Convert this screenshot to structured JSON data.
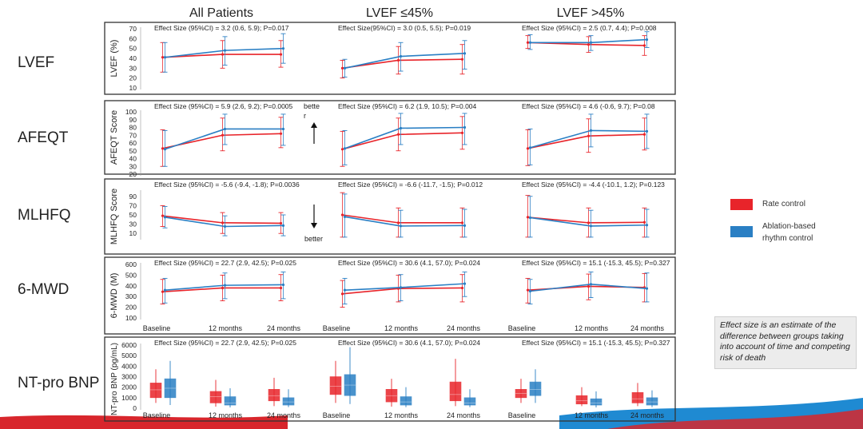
{
  "column_titles": [
    "All Patients",
    "LVEF ≤45%",
    "LVEF >45%"
  ],
  "row_labels": [
    "LVEF",
    "AFEQT",
    "MLHFQ",
    "6-MWD",
    "NT-pro BNP"
  ],
  "legend": [
    {
      "label": "Rate control",
      "color": "#e8242a"
    },
    {
      "label": "Ablation-based rhythm control",
      "label_line1": "Ablation-based",
      "label_line2": "rhythm control",
      "color": "#2a7fc4"
    }
  ],
  "note": "Effect size is an estimate of the difference between groups taking into account of time and competing risk of death",
  "annotations": {
    "better_up_1": "bette",
    "better_up_2": "r",
    "better_down": "better"
  },
  "colors": {
    "rate": "#e8242a",
    "ablation": "#2a7fc4",
    "banner_red": "#d8262c",
    "banner_blue": "#1f8ad2"
  },
  "chart_data": [
    {
      "type": "line",
      "ylabel": "LVEF (%)",
      "ylim": [
        10,
        70
      ],
      "yticks": [
        10,
        20,
        30,
        40,
        50,
        60,
        70
      ],
      "x": [
        "Baseline",
        "12 months",
        "24 months"
      ],
      "show_xlabels": false,
      "panels": [
        {
          "effect": "Effect Size (95%CI) = 3.2 (0.6, 5.9); P=0.017",
          "series": [
            {
              "name": "Rate control",
              "values": [
                41,
                44,
                44
              ],
              "err": [
                [
                  26,
                  56
                ],
                [
                  30,
                  58
                ],
                [
                  31,
                  58
                ]
              ]
            },
            {
              "name": "Ablation-based rhythm control",
              "values": [
                41,
                48,
                50
              ],
              "err": [
                [
                  26,
                  56
                ],
                [
                  33,
                  62
                ],
                [
                  35,
                  65
                ]
              ]
            }
          ]
        },
        {
          "effect": "Effect Size(95%CI) = 3.0 (0.5, 5.5); P=0.019",
          "series": [
            {
              "name": "Rate control",
              "values": [
                30,
                38,
                39
              ],
              "err": [
                [
                  20,
                  38
                ],
                [
                  24,
                  52
                ],
                [
                  24,
                  54
                ]
              ]
            },
            {
              "name": "Ablation-based rhythm control",
              "values": [
                30,
                42,
                45
              ],
              "err": [
                [
                  21,
                  39
                ],
                [
                  27,
                  56
                ],
                [
                  29,
                  58
                ]
              ]
            }
          ]
        },
        {
          "effect": "Effect Size (95%CI) = 2.5 (0.7, 4.4); P=0.008",
          "series": [
            {
              "name": "Rate control",
              "values": [
                56,
                54,
                53
              ],
              "err": [
                [
                  50,
                  63
                ],
                [
                  46,
                  62
                ],
                [
                  43,
                  63
                ]
              ]
            },
            {
              "name": "Ablation-based rhythm control",
              "values": [
                56,
                56,
                59
              ],
              "err": [
                [
                  49,
                  64
                ],
                [
                  48,
                  63
                ],
                [
                  51,
                  67
                ]
              ]
            }
          ]
        }
      ]
    },
    {
      "type": "line",
      "ylabel": "AFEQT Score",
      "ylim": [
        20,
        100
      ],
      "yticks": [
        20,
        30,
        40,
        50,
        60,
        70,
        80,
        90,
        100
      ],
      "x": [
        "Baseline",
        "12 months",
        "24 months"
      ],
      "show_xlabels": false,
      "panels": [
        {
          "effect": "Effect Size (95%CI) = 5.9 (2.6, 9.2); P=0.0005",
          "series": [
            {
              "name": "Rate control",
              "values": [
                53,
                70,
                72
              ],
              "err": [
                [
                  30,
                  77
                ],
                [
                  50,
                  92
                ],
                [
                  54,
                  93
                ]
              ]
            },
            {
              "name": "Ablation-based rhythm control",
              "values": [
                52,
                78,
                78
              ],
              "err": [
                [
                  30,
                  76
                ],
                [
                  58,
                  97
                ],
                [
                  57,
                  97
                ]
              ]
            }
          ]
        },
        {
          "effect": "Effect Size (95%CI) = 6.2 (1.9, 10.5); P=0.004",
          "series": [
            {
              "name": "Rate control",
              "values": [
                52,
                71,
                73
              ],
              "err": [
                [
                  30,
                  75
                ],
                [
                  50,
                  92
                ],
                [
                  52,
                  94
                ]
              ]
            },
            {
              "name": "Ablation-based rhythm control",
              "values": [
                53,
                79,
                80
              ],
              "err": [
                [
                  32,
                  76
                ],
                [
                  58,
                  98
                ],
                [
                  58,
                  98
                ]
              ]
            }
          ]
        },
        {
          "effect": "Effect Size (95%CI) = 4.6 (-0.6, 9.7); P=0.08",
          "series": [
            {
              "name": "Rate control",
              "values": [
                53,
                69,
                71
              ],
              "err": [
                [
                  31,
                  77
                ],
                [
                  48,
                  91
                ],
                [
                  51,
                  92
                ]
              ]
            },
            {
              "name": "Ablation-based rhythm control",
              "values": [
                54,
                76,
                75
              ],
              "err": [
                [
                  32,
                  78
                ],
                [
                  55,
                  97
                ],
                [
                  53,
                  97
                ]
              ]
            }
          ]
        }
      ]
    },
    {
      "type": "line",
      "ylabel": "MLHFQ Score",
      "ylim": [
        0,
        100
      ],
      "yticks": [
        10,
        30,
        50,
        70,
        90
      ],
      "x": [
        "Baseline",
        "12 months",
        "24 months"
      ],
      "show_xlabels": false,
      "panels": [
        {
          "effect": "Effect Size (95%CI) = -5.6 (-9.4, -1.8); P=0.0036",
          "series": [
            {
              "name": "Rate control",
              "values": [
                48,
                33,
                32
              ],
              "err": [
                [
                  25,
                  70
                ],
                [
                  10,
                  55
                ],
                [
                  10,
                  55
                ]
              ]
            },
            {
              "name": "Ablation-based rhythm control",
              "values": [
                45,
                25,
                27
              ],
              "err": [
                [
                  22,
                  68
                ],
                [
                  5,
                  48
                ],
                [
                  5,
                  50
                ]
              ]
            }
          ]
        },
        {
          "effect": "Effect Size (95%CI) = -6.6 (-11.7, -1.5); P=0.012",
          "series": [
            {
              "name": "Rate control",
              "values": [
                50,
                33,
                33
              ],
              "err": [
                [
                  2,
                  98
                ],
                [
                  2,
                  65
                ],
                [
                  2,
                  65
                ]
              ]
            },
            {
              "name": "Ablation-based rhythm control",
              "values": [
                46,
                26,
                27
              ],
              "err": [
                [
                  2,
                  95
                ],
                [
                  2,
                  60
                ],
                [
                  2,
                  62
                ]
              ]
            }
          ]
        },
        {
          "effect": "Effect Size (95%CI) = -4.4 (-10.1, 1.2); P=0.123",
          "series": [
            {
              "name": "Rate control",
              "values": [
                45,
                33,
                34
              ],
              "err": [
                [
                  2,
                  92
                ],
                [
                  2,
                  65
                ],
                [
                  2,
                  65
                ]
              ]
            },
            {
              "name": "Ablation-based rhythm control",
              "values": [
                44,
                26,
                28
              ],
              "err": [
                [
                  2,
                  90
                ],
                [
                  2,
                  60
                ],
                [
                  2,
                  62
                ]
              ]
            }
          ]
        }
      ]
    },
    {
      "type": "line",
      "ylabel": "6-MWD (M)",
      "ylim": [
        100,
        600
      ],
      "yticks": [
        100,
        200,
        300,
        400,
        500,
        600
      ],
      "x": [
        "Baseline",
        "12 months",
        "24 months"
      ],
      "show_xlabels": true,
      "panels": [
        {
          "effect": "Effect Size (95%CI) = 22.7 (2.9, 42.5); P=0.025",
          "series": [
            {
              "name": "Rate control",
              "values": [
                345,
                380,
                380
              ],
              "err": [
                [
                  230,
                  460
                ],
                [
                  260,
                  500
                ],
                [
                  260,
                  505
                ]
              ]
            },
            {
              "name": "Ablation-based rhythm control",
              "values": [
                360,
                405,
                410
              ],
              "err": [
                [
                  240,
                  470
                ],
                [
                  280,
                  520
                ],
                [
                  280,
                  530
                ]
              ]
            }
          ]
        },
        {
          "effect": "Effect Size (95%CI) = 30.6 (4.1, 57.0); P=0.024",
          "series": [
            {
              "name": "Rate control",
              "values": [
                325,
                375,
                380
              ],
              "err": [
                [
                  200,
                  450
                ],
                [
                  250,
                  500
                ],
                [
                  250,
                  505
                ]
              ]
            },
            {
              "name": "Ablation-based rhythm control",
              "values": [
                360,
                385,
                420
              ],
              "err": [
                [
                  230,
                  470
                ],
                [
                  260,
                  505
                ],
                [
                  300,
                  530
                ]
              ]
            }
          ]
        },
        {
          "effect": "Effect Size (95%CI) = 15.1 (-15.3, 45.5); P=0.327",
          "series": [
            {
              "name": "Rate control",
              "values": [
                360,
                395,
                385
              ],
              "err": [
                [
                  240,
                  470
                ],
                [
                  270,
                  510
                ],
                [
                  250,
                  515
                ]
              ]
            },
            {
              "name": "Ablation-based rhythm control",
              "values": [
                350,
                415,
                375
              ],
              "err": [
                [
                  230,
                  460
                ],
                [
                  290,
                  530
                ],
                [
                  250,
                  520
                ]
              ]
            }
          ]
        }
      ]
    },
    {
      "type": "box",
      "ylabel": "NT-pro BNP (pg/mL)",
      "ylim": [
        0,
        6000
      ],
      "yticks": [
        0,
        1000,
        2000,
        3000,
        4000,
        5000,
        6000
      ],
      "x": [
        "Baseline",
        "12 months",
        "24 months"
      ],
      "show_xlabels": true,
      "panels": [
        {
          "effect": "Effect Size (95%CI) = 22.7 (2.9, 42.5); P=0.025",
          "series": [
            {
              "name": "Rate control",
              "boxes": [
                [
                  500,
                  1000,
                  1750,
                  2400,
                  3700
                ],
                [
                  150,
                  500,
                  1100,
                  1600,
                  2700
                ],
                [
                  200,
                  700,
                  1200,
                  1800,
                  2900
                ]
              ]
            },
            {
              "name": "Ablation-based rhythm control",
              "boxes": [
                [
                  300,
                  1000,
                  1900,
                  2800,
                  4500
                ],
                [
                  80,
                  300,
                  500,
                  1100,
                  1900
                ],
                [
                  100,
                  300,
                  600,
                  1000,
                  1800
                ]
              ]
            }
          ]
        },
        {
          "effect": "Effect Size (95%CI) = 30.6 (4.1, 57.0); P=0.024",
          "series": [
            {
              "name": "Rate control",
              "boxes": [
                [
                  500,
                  1300,
                  2100,
                  3000,
                  4500
                ],
                [
                  150,
                  600,
                  1200,
                  1800,
                  2800
                ],
                [
                  200,
                  700,
                  1300,
                  2500,
                  4700
                ]
              ]
            },
            {
              "name": "Ablation-based rhythm control",
              "boxes": [
                [
                  400,
                  1200,
                  2200,
                  3200,
                  5800
                ],
                [
                  100,
                  300,
                  600,
                  1100,
                  2000
                ],
                [
                  100,
                  300,
                  500,
                  1000,
                  1800
                ]
              ]
            }
          ]
        },
        {
          "effect": "Effect Size (95%CI) = 15.1 (-15.3, 45.5); P=0.327",
          "series": [
            {
              "name": "Rate control",
              "boxes": [
                [
                  500,
                  1000,
                  1400,
                  1800,
                  2800
                ],
                [
                  200,
                  400,
                  700,
                  1200,
                  2000
                ],
                [
                  200,
                  500,
                  900,
                  1500,
                  2400
                ]
              ]
            },
            {
              "name": "Ablation-based rhythm control",
              "boxes": [
                [
                  500,
                  1200,
                  1800,
                  2500,
                  3700
                ],
                [
                  80,
                  300,
                  500,
                  900,
                  1600
                ],
                [
                  100,
                  300,
                  600,
                  1000,
                  1700
                ]
              ]
            }
          ]
        }
      ]
    }
  ]
}
